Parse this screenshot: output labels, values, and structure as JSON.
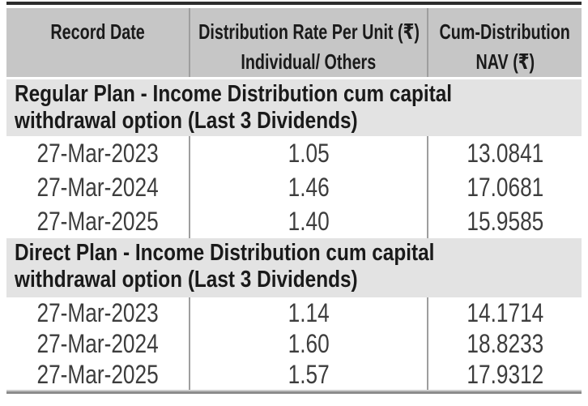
{
  "header": {
    "record_date": "Record Date",
    "rate_line1": "Distribution Rate Per Unit (₹)",
    "rate_line2": "Individual/ Others",
    "nav_line1": "Cum-Distribution",
    "nav_line2": "NAV (₹)"
  },
  "sections": [
    {
      "title_line1": "Regular Plan - Income Distribution cum capital",
      "title_line2": "withdrawal option (Last 3 Dividends)",
      "rows": [
        {
          "date": "27-Mar-2023",
          "rate": "1.05",
          "nav": "13.0841"
        },
        {
          "date": "27-Mar-2024",
          "rate": "1.46",
          "nav": "17.0681"
        },
        {
          "date": "27-Mar-2025",
          "rate": "1.40",
          "nav": "15.9585"
        }
      ]
    },
    {
      "title_line1": "Direct Plan - Income Distribution cum capital",
      "title_line2": "withdrawal option (Last 3 Dividends)",
      "rows": [
        {
          "date": "27-Mar-2023",
          "rate": "1.14",
          "nav": "14.1714"
        },
        {
          "date": "27-Mar-2024",
          "rate": "1.60",
          "nav": "18.8233"
        },
        {
          "date": "27-Mar-2025",
          "rate": "1.57",
          "nav": "17.9312"
        }
      ]
    }
  ],
  "colors": {
    "header_bg": "#c6c6c6",
    "section_bg": "#e3e3e3",
    "top_rule": "#2d2d2d",
    "bottom_rule_light": "#cccccc",
    "bottom_rule_dark": "#8c8c8c",
    "divider": "#9e9e9e",
    "header_text": "#1a1a1a",
    "data_text": "#3d3d3d"
  }
}
